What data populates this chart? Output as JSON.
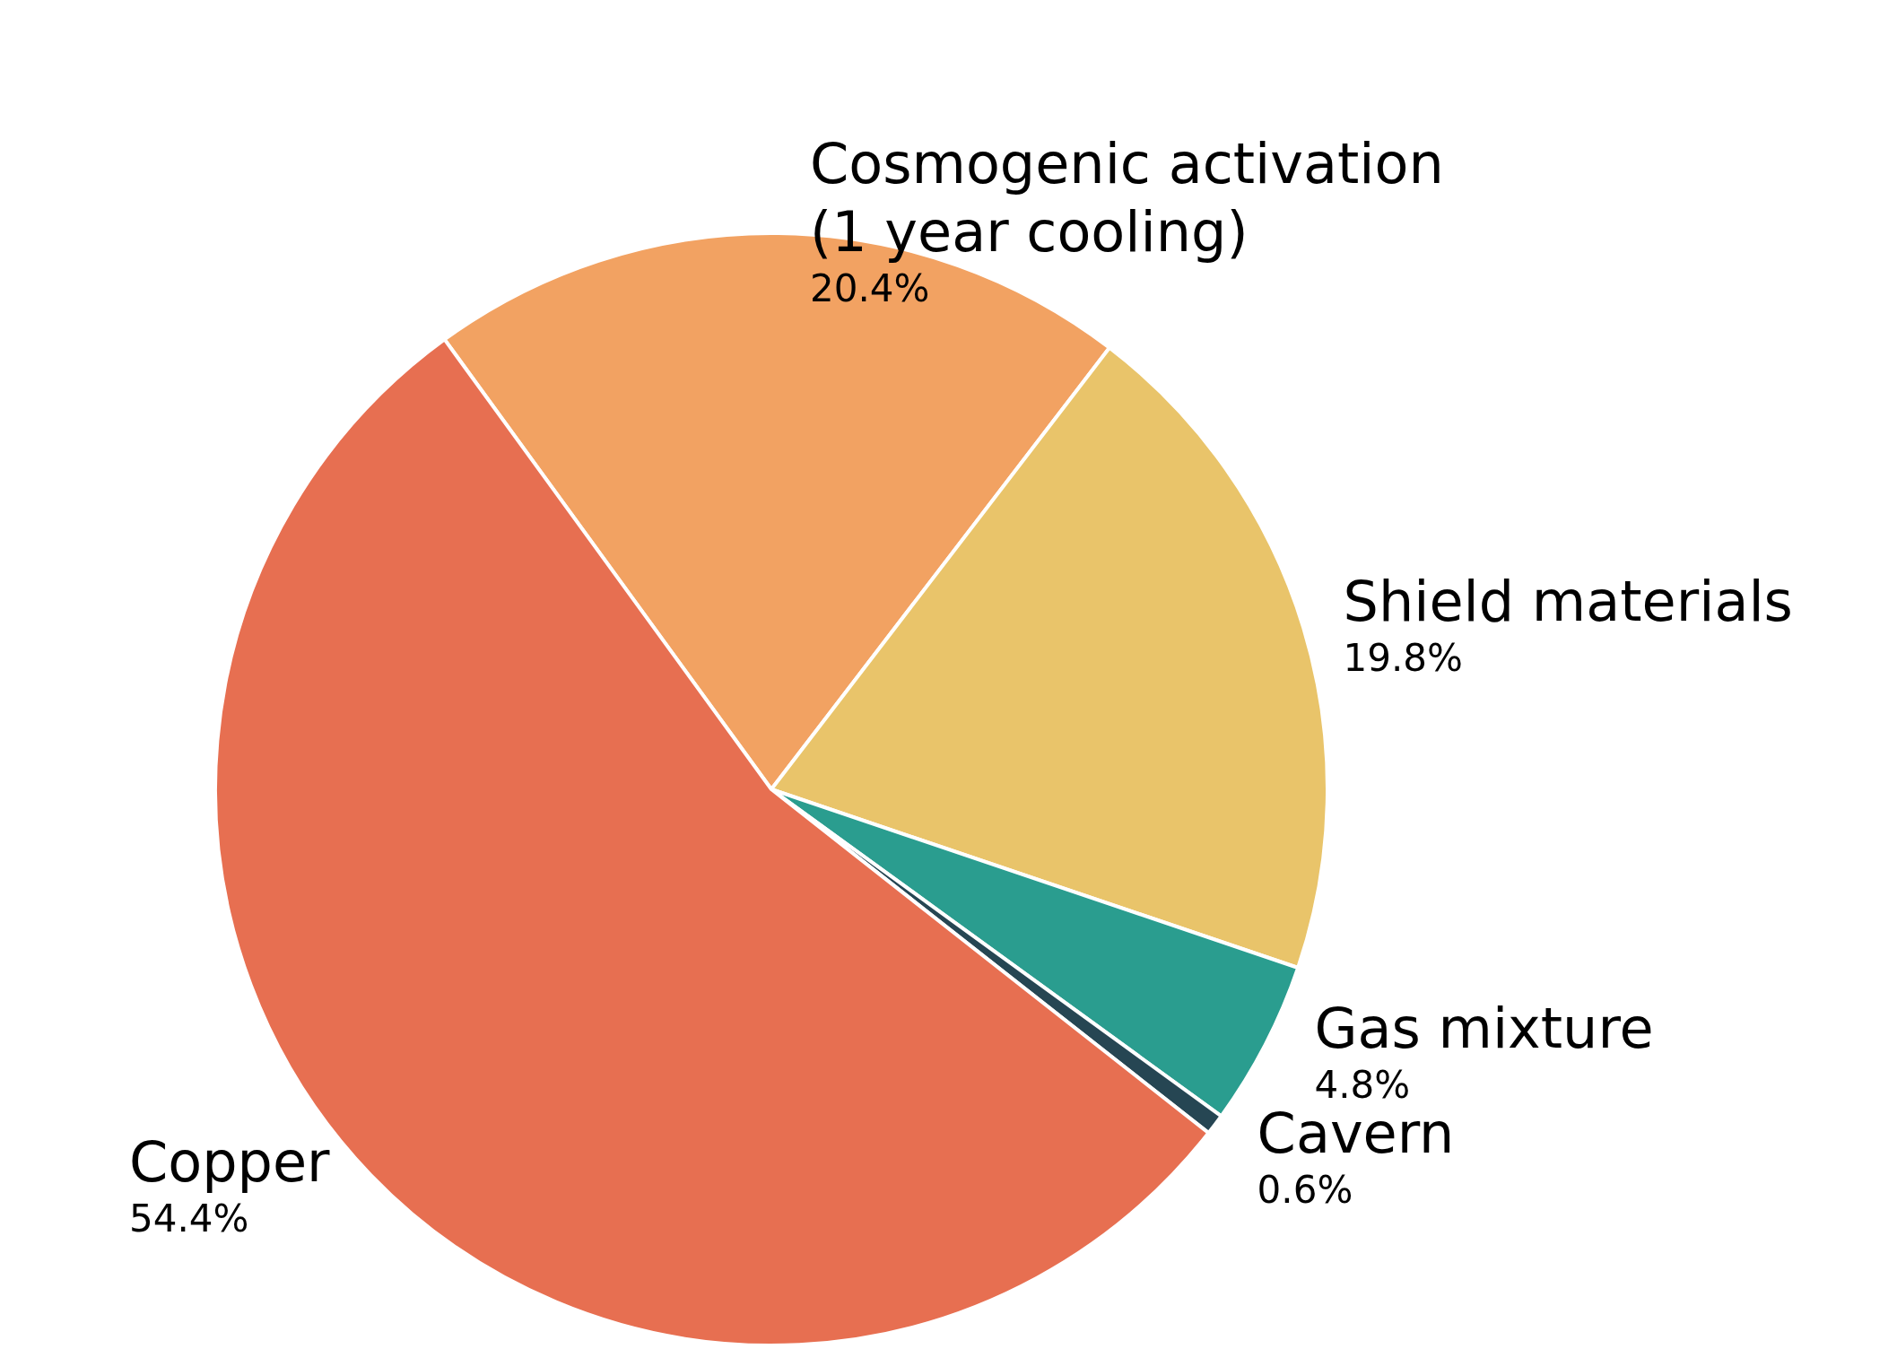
{
  "chart_data": {
    "type": "pie",
    "categories": [
      "Cosmogenic activation\n(1 year cooling)",
      "Shield materials",
      "Gas mixture",
      "Cavern",
      "Copper"
    ],
    "values": [
      20.4,
      19.8,
      4.8,
      0.6,
      54.4
    ],
    "value_labels": [
      "20.4%",
      "19.8%",
      "4.8%",
      "0.6%",
      "54.4%"
    ],
    "colors": [
      "#f2a262",
      "#e9c46a",
      "#2a9d8f",
      "#264653",
      "#e76f51"
    ],
    "legend": false
  }
}
